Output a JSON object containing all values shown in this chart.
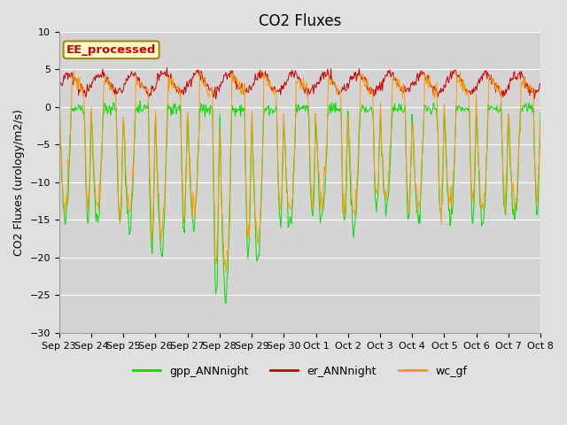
{
  "title": "CO2 Fluxes",
  "ylabel": "CO2 Fluxes (urology/m2/s)",
  "ylim": [
    -30,
    10
  ],
  "yticks": [
    -30,
    -25,
    -20,
    -15,
    -10,
    -5,
    0,
    5,
    10
  ],
  "fig_bg_color": "#e0e0e0",
  "plot_bg_color": "#d4d4d4",
  "grid_color": "#ffffff",
  "annotation_text": "EE_processed",
  "annotation_color": "#cc0000",
  "annotation_bg": "#ffffcc",
  "annotation_border": "#aa8800",
  "line_colors": {
    "gpp": "#00dd00",
    "er": "#cc0000",
    "wc": "#ff9900"
  },
  "legend_labels": [
    "gpp_ANNnight",
    "er_ANNnight",
    "wc_gf"
  ],
  "x_tick_labels": [
    "Sep 23",
    "Sep 24",
    "Sep 25",
    "Sep 26",
    "Sep 27",
    "Sep 28",
    "Sep 29",
    "Sep 30",
    "Oct 1",
    "Oct 2",
    "Oct 3",
    "Oct 4",
    "Oct 5",
    "Oct 6",
    "Oct 7",
    "Oct 8"
  ],
  "title_fontsize": 12,
  "axis_fontsize": 9,
  "tick_fontsize": 8
}
